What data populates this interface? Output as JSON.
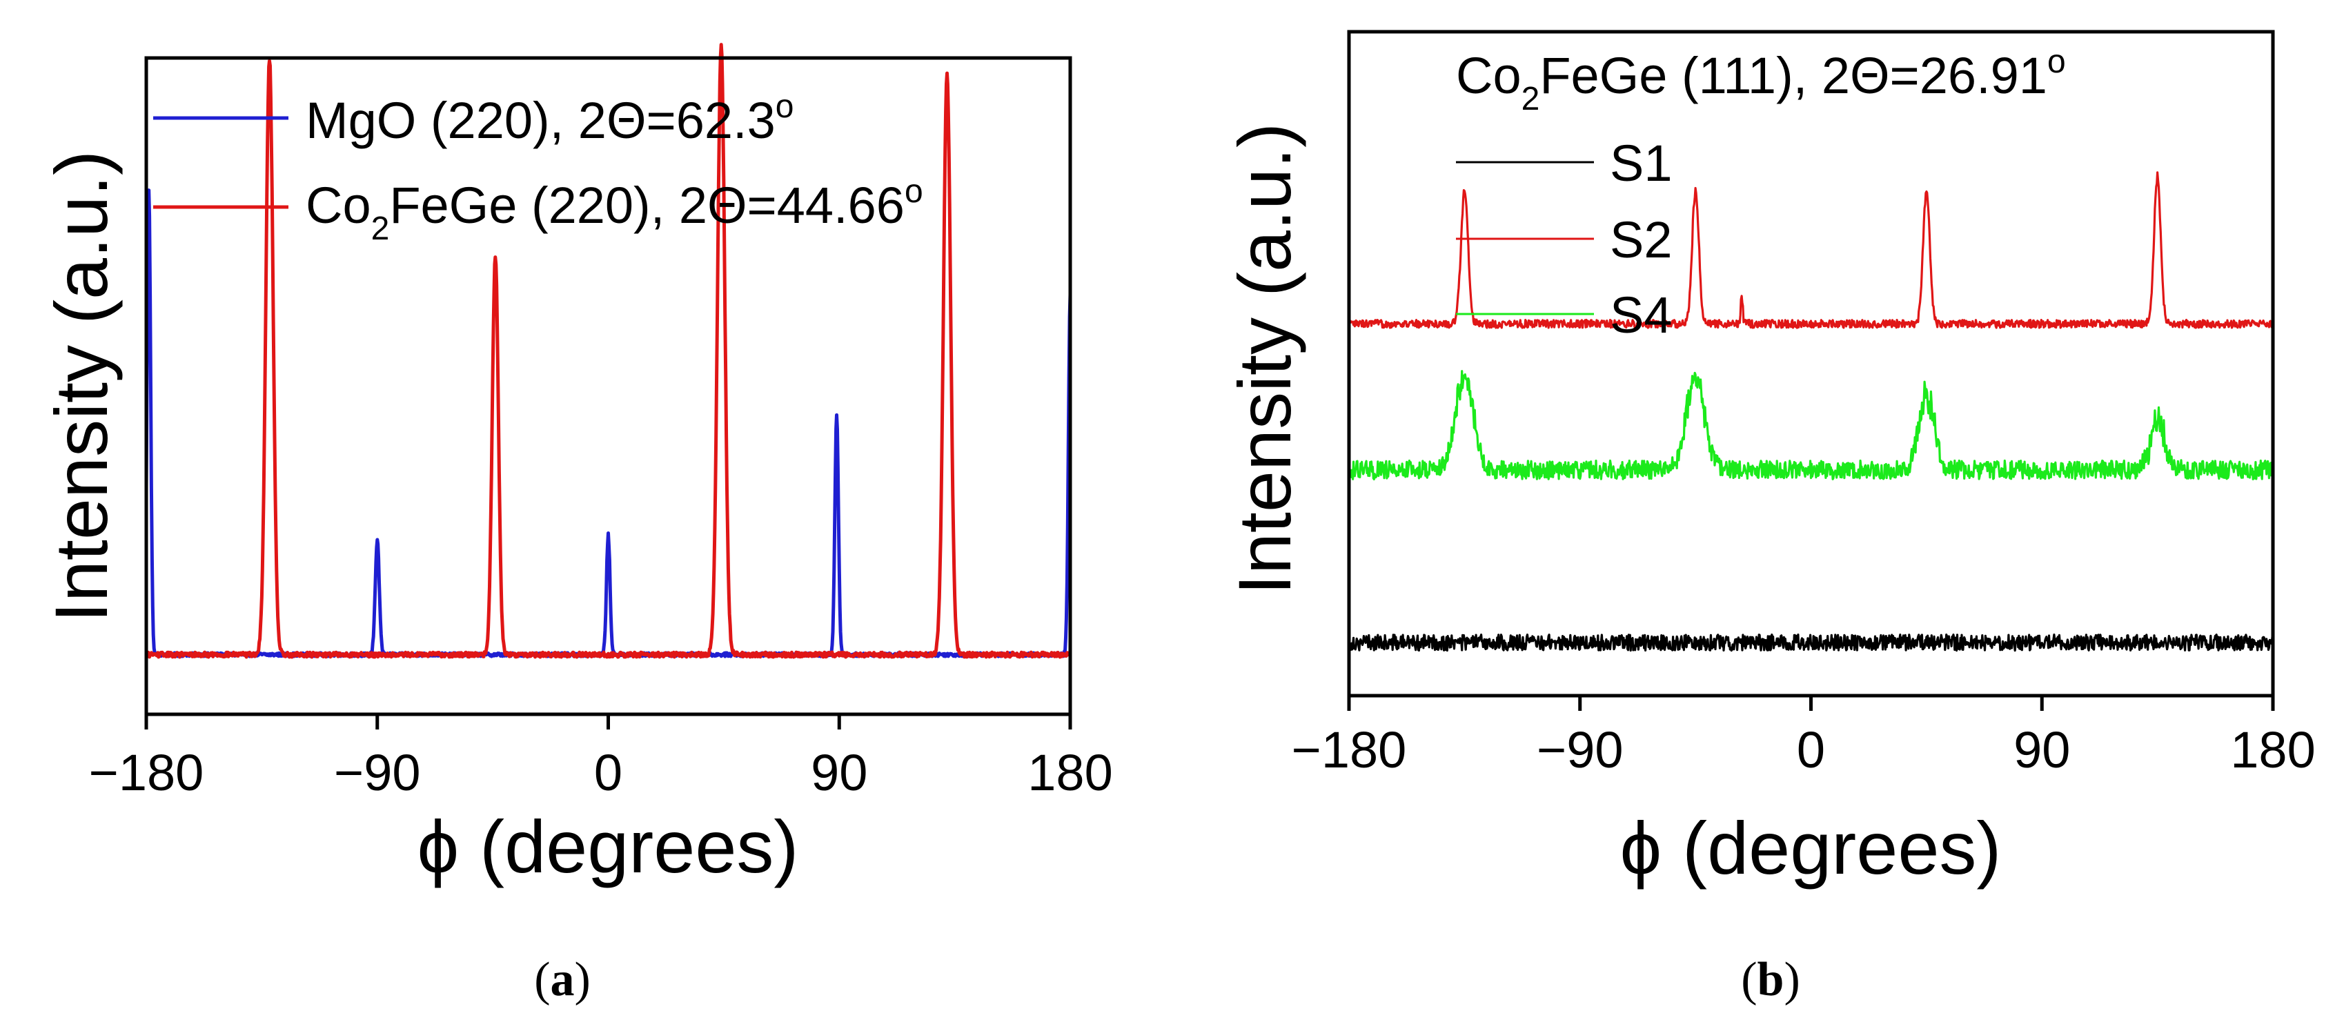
{
  "colors": {
    "mgo": "#1f1fd1",
    "co2fege": "#e01616",
    "s1": "#000000",
    "s2": "#e01616",
    "s4": "#1bea1b",
    "axis": "#000000"
  },
  "chart_data": [
    {
      "panel": "a",
      "type": "line",
      "caption": "(a)",
      "xlabel": "ϕ (degrees)",
      "ylabel": "Intensity (a.u.)",
      "xlim": [
        -180,
        180
      ],
      "ylim": [
        0,
        1.1
      ],
      "xticks": [
        "−180",
        "−90",
        "0",
        "90",
        "180"
      ],
      "xtick_values": [
        -180,
        -90,
        0,
        90,
        180
      ],
      "legend_position": "top-left",
      "series": [
        {
          "key": "mgo",
          "name": "MgO (220), 2Θ=62.3°",
          "legend_main": "MgO (220), 2Θ=62.3",
          "legend_sup": "o",
          "color_key": "mgo",
          "baseline": 0.1,
          "noise": 0.003,
          "peaks": [
            {
              "x": -179,
              "height": 0.78,
              "width": 0.7
            },
            {
              "x": -90,
              "height": 0.19,
              "width": 0.8
            },
            {
              "x": 0,
              "height": 0.2,
              "width": 0.7
            },
            {
              "x": 89,
              "height": 0.4,
              "width": 0.7
            },
            {
              "x": 180,
              "height": 0.6,
              "width": 0.7
            }
          ]
        },
        {
          "key": "co2fege",
          "name": "Co2FeGe (220), 2Θ=44.66°",
          "legend_pre": "Co",
          "legend_sub": "2",
          "legend_main": "FeGe (220),  2Θ=44.66",
          "legend_sup": "o",
          "color_key": "co2fege",
          "baseline": 0.1,
          "noise": 0.004,
          "peaks": [
            {
              "x": -132,
              "height": 1.0,
              "width": 1.4
            },
            {
              "x": -44,
              "height": 0.67,
              "width": 1.2
            },
            {
              "x": 44,
              "height": 1.02,
              "width": 1.4
            },
            {
              "x": 132,
              "height": 0.97,
              "width": 1.4
            }
          ]
        }
      ]
    },
    {
      "panel": "b",
      "type": "line",
      "caption": "(b)",
      "title_pre": "Co",
      "title_sub": "2",
      "title_main": "FeGe (111), 2Θ=26.91",
      "title_sup": "o",
      "xlabel": "ϕ (degrees)",
      "ylabel": "Intensity (a.u.)",
      "xlim": [
        -180,
        180
      ],
      "ylim": [
        0,
        1.0
      ],
      "xticks": [
        "−180",
        "−90",
        "0",
        "90",
        "180"
      ],
      "xtick_values": [
        -180,
        -90,
        0,
        90,
        180
      ],
      "legend_position": "top-left",
      "series": [
        {
          "key": "s1",
          "name": "S1",
          "color_key": "s1",
          "baseline": 0.08,
          "noise": 0.012,
          "peaks": []
        },
        {
          "key": "s2",
          "name": "S2",
          "color_key": "s2",
          "baseline": 0.56,
          "noise": 0.006,
          "peaks": [
            {
              "x": -135,
              "height": 0.2,
              "width": 1.4
            },
            {
              "x": -45,
              "height": 0.2,
              "width": 1.3
            },
            {
              "x": -27,
              "height": 0.04,
              "width": 0.4
            },
            {
              "x": 45,
              "height": 0.2,
              "width": 1.3
            },
            {
              "x": 135,
              "height": 0.22,
              "width": 1.3
            }
          ]
        },
        {
          "key": "s4",
          "name": "S4",
          "color_key": "s4",
          "baseline": 0.34,
          "noise": 0.014,
          "peaks": [
            {
              "x": -135,
              "height": 0.14,
              "width": 3.5
            },
            {
              "x": -45,
              "height": 0.14,
              "width": 3.5
            },
            {
              "x": 45,
              "height": 0.11,
              "width": 3.0
            },
            {
              "x": 135,
              "height": 0.07,
              "width": 3.0
            }
          ]
        }
      ]
    }
  ]
}
